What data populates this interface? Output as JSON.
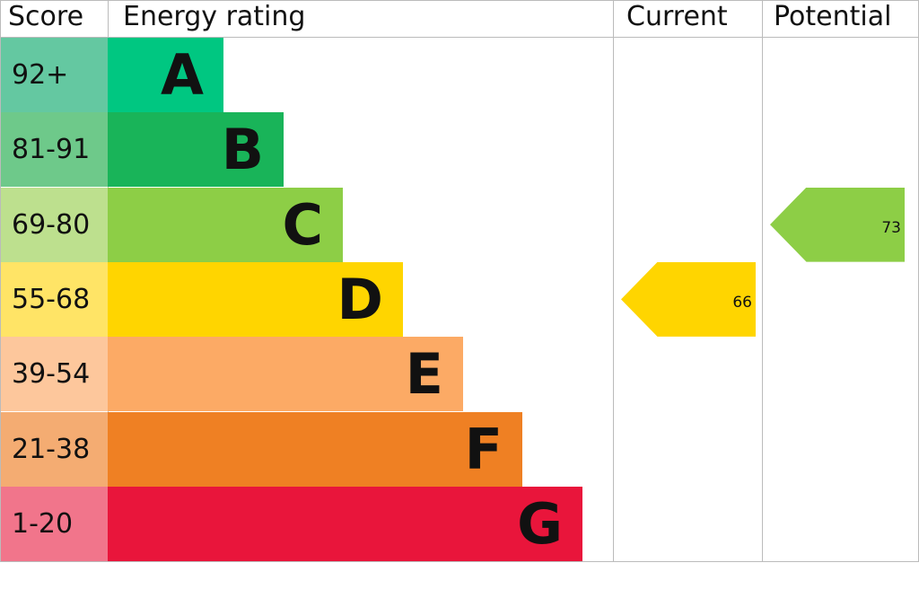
{
  "headers": {
    "score": "Score",
    "rating": "Energy rating",
    "current": "Current",
    "potential": "Potential"
  },
  "chart_data": {
    "type": "bar",
    "bands": [
      {
        "letter": "A",
        "range": "92+",
        "color": "#00c781",
        "score_color": "#64c8a1"
      },
      {
        "letter": "B",
        "range": "81-91",
        "color": "#19b459",
        "score_color": "#6ec98a"
      },
      {
        "letter": "C",
        "range": "69-80",
        "color": "#8dce46",
        "score_color": "#bde08e"
      },
      {
        "letter": "D",
        "range": "55-68",
        "color": "#ffd500",
        "score_color": "#ffe466"
      },
      {
        "letter": "E",
        "range": "39-54",
        "color": "#fcaa65",
        "score_color": "#fdc79c"
      },
      {
        "letter": "F",
        "range": "21-38",
        "color": "#ef8023",
        "score_color": "#f4ac72"
      },
      {
        "letter": "G",
        "range": "1-20",
        "color": "#e9153b",
        "score_color": "#f1758b"
      }
    ],
    "current": {
      "value": "66",
      "band": "D",
      "color": "#ffd500"
    },
    "potential": {
      "value": "73",
      "band": "C",
      "color": "#8dce46"
    }
  }
}
